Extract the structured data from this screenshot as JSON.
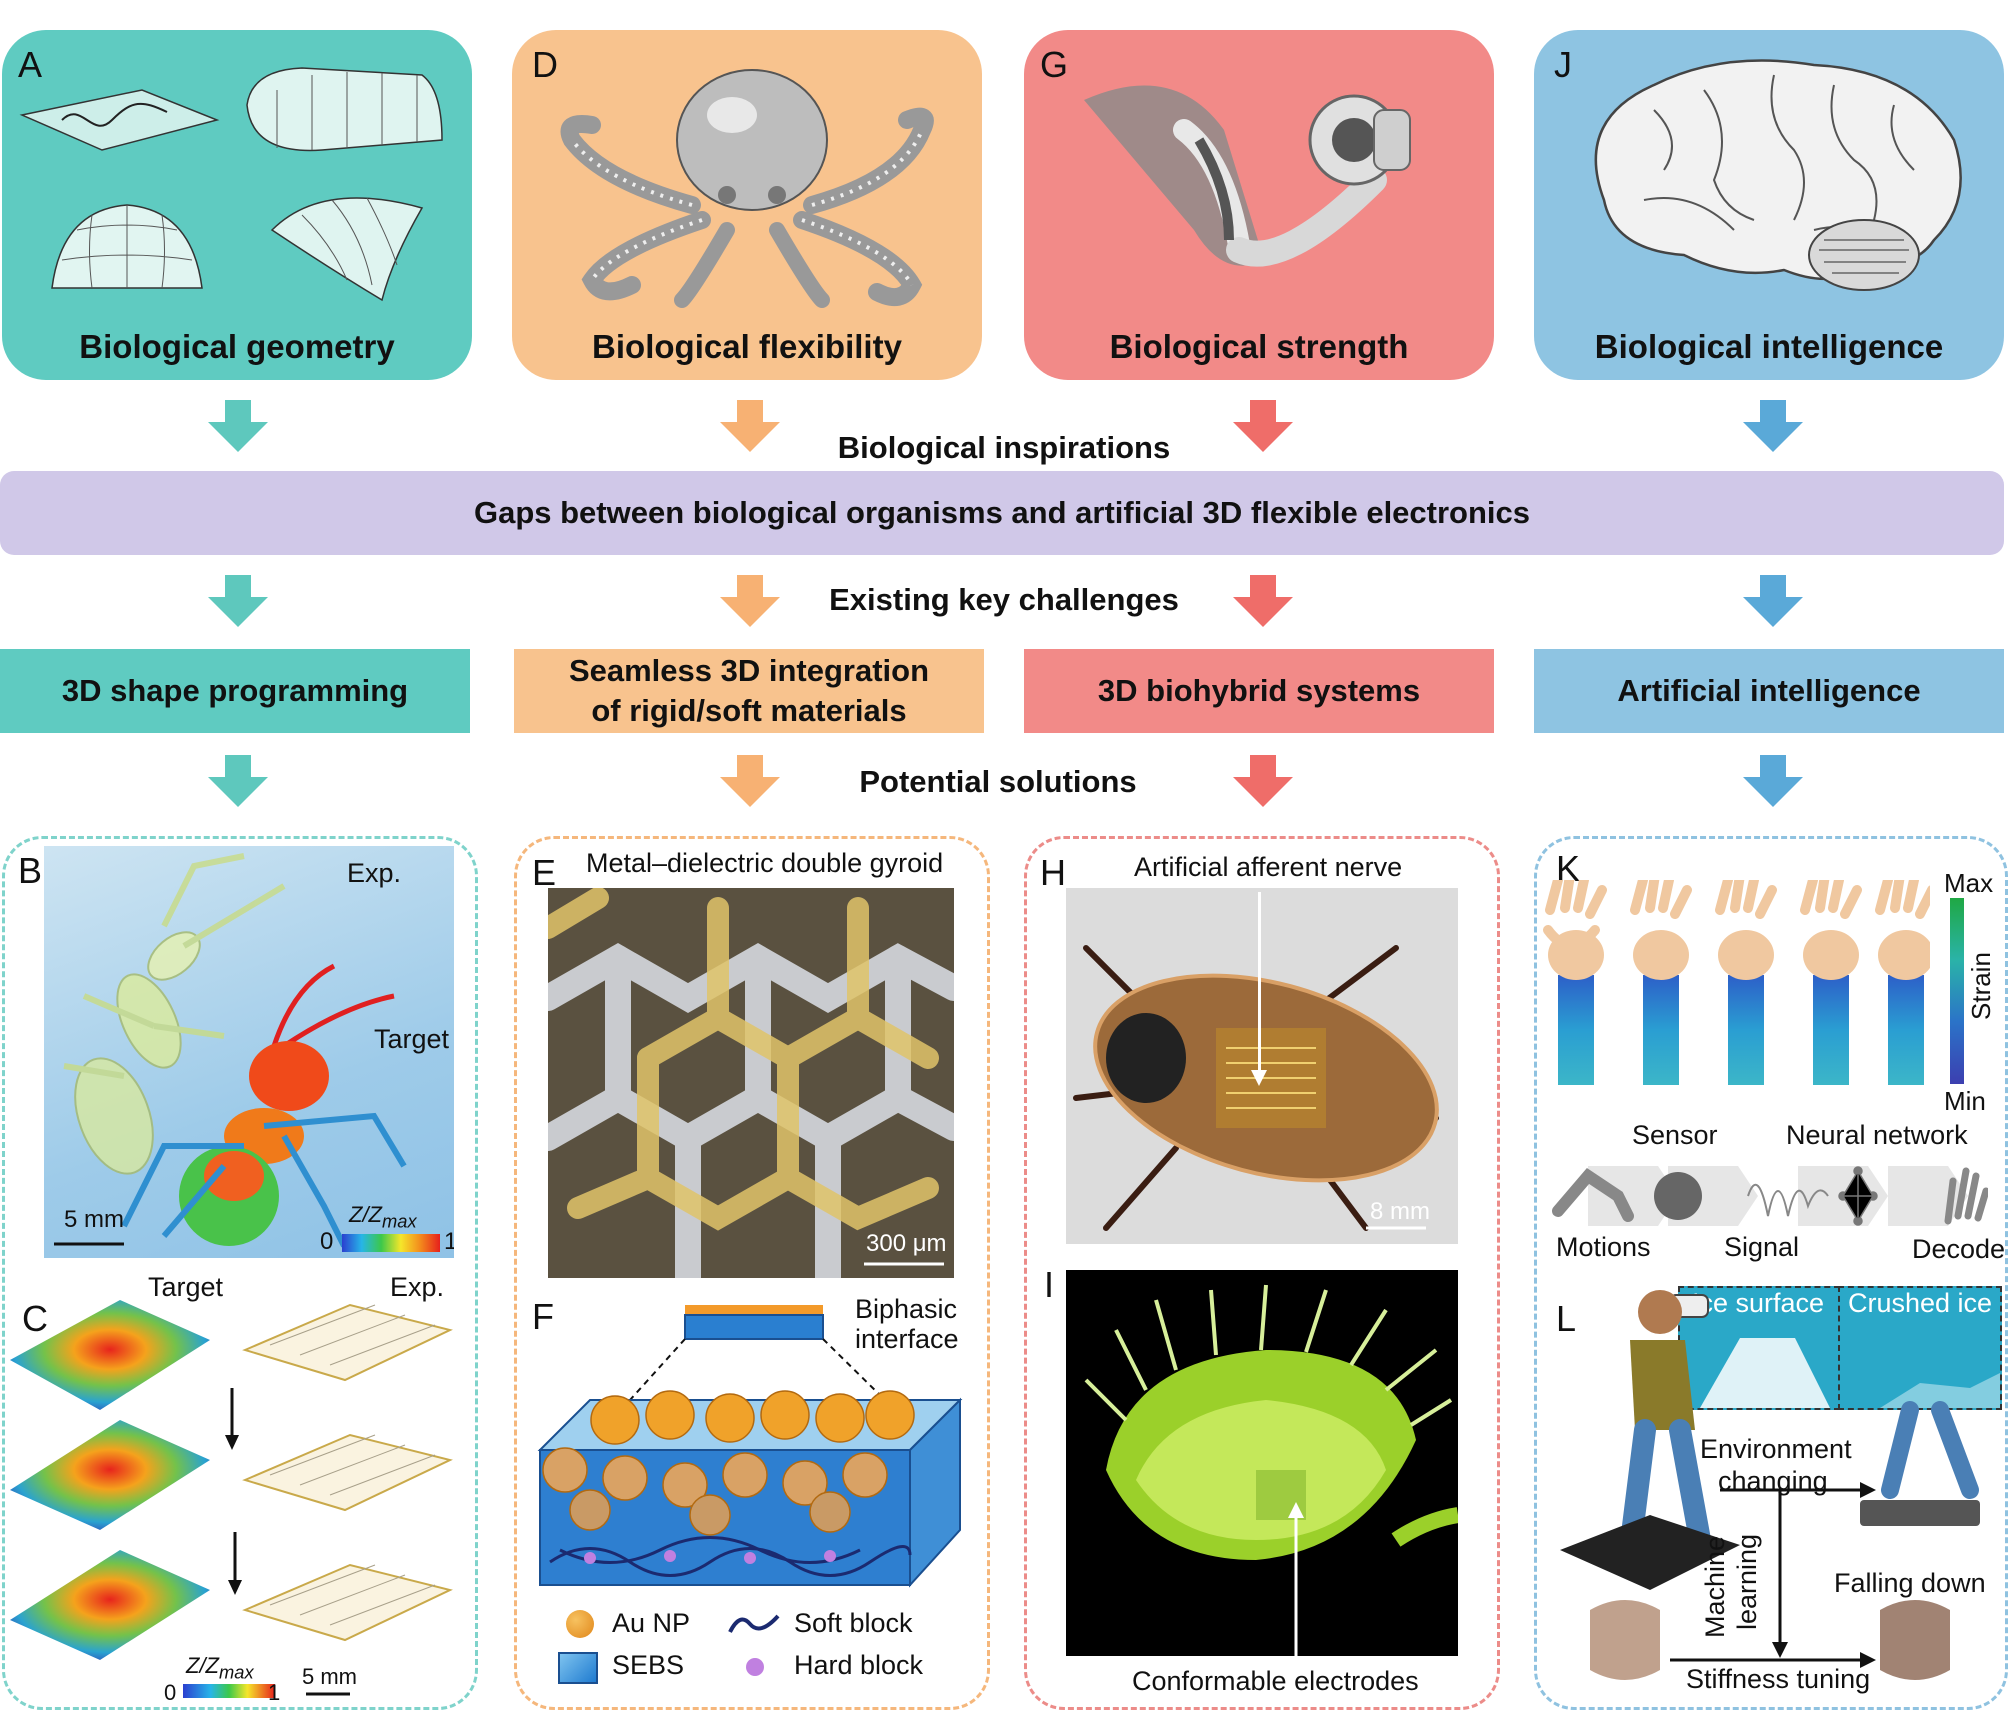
{
  "colors": {
    "teal": "#5fcbc1",
    "orange": "#f8c38e",
    "red": "#f28a88",
    "blue": "#8ec4e2",
    "teal_arrow": "#5ec8bd",
    "orange_arrow": "#f7b173",
    "red_arrow": "#ef6d69",
    "blue_arrow": "#5aa9d8",
    "purple_bar": "#d0c8e8"
  },
  "top_cards": [
    {
      "letter": "A",
      "title": "Biological geometry"
    },
    {
      "letter": "D",
      "title": "Biological flexibility"
    },
    {
      "letter": "G",
      "title": "Biological strength"
    },
    {
      "letter": "J",
      "title": "Biological intelligence"
    }
  ],
  "labels": {
    "inspirations": "Biological inspirations",
    "gaps": "Gaps between biological organisms and artificial 3D flexible electronics",
    "challenges": "Existing key challenges",
    "solutions": "Potential solutions"
  },
  "challenges": [
    {
      "line1": "3D shape programming",
      "line2": ""
    },
    {
      "line1": "Seamless 3D integration",
      "line2": "of rigid/soft materials"
    },
    {
      "line1": "3D biohybrid systems",
      "line2": ""
    },
    {
      "line1": "Artificial intelligence",
      "line2": ""
    }
  ],
  "panel_b": {
    "letter": "B",
    "exp": "Exp.",
    "target": "Target",
    "scale": "5 mm",
    "cbar_label": "Z/Z",
    "cbar_sub": "max",
    "cbar_min": "0",
    "cbar_max": "1"
  },
  "panel_c": {
    "letter": "C",
    "target": "Target",
    "exp": "Exp.",
    "cbar_label": "Z/Z",
    "cbar_sub": "max",
    "cbar_min": "0",
    "cbar_max": "1",
    "scale": "5 mm"
  },
  "panel_e": {
    "letter": "E",
    "title": "Metal–dielectric double gyroid",
    "scale": "300 μm"
  },
  "panel_f": {
    "letter": "F",
    "interface": "Biphasic",
    "interface2": "interface",
    "legend": [
      "Au NP",
      "Soft block",
      "SEBS",
      "Hard block"
    ]
  },
  "panel_h": {
    "letter": "H",
    "title": "Artificial afferent nerve",
    "scale": "8 mm"
  },
  "panel_i": {
    "letter": "I",
    "caption": "Conformable electrodes"
  },
  "panel_k": {
    "letter": "K",
    "max": "Max",
    "min": "Min",
    "strain": "Strain",
    "sensor": "Sensor",
    "neural": "Neural network",
    "motions": "Motions",
    "signal": "Signal",
    "decode": "Decode"
  },
  "panel_l": {
    "letter": "L",
    "ice": "Ice surface",
    "crushed": "Crushed ice",
    "env1": "Environment",
    "env2": "changing",
    "ml1": "Machine",
    "ml2": "learning",
    "falling": "Falling down",
    "stiffness": "Stiffness tuning"
  }
}
